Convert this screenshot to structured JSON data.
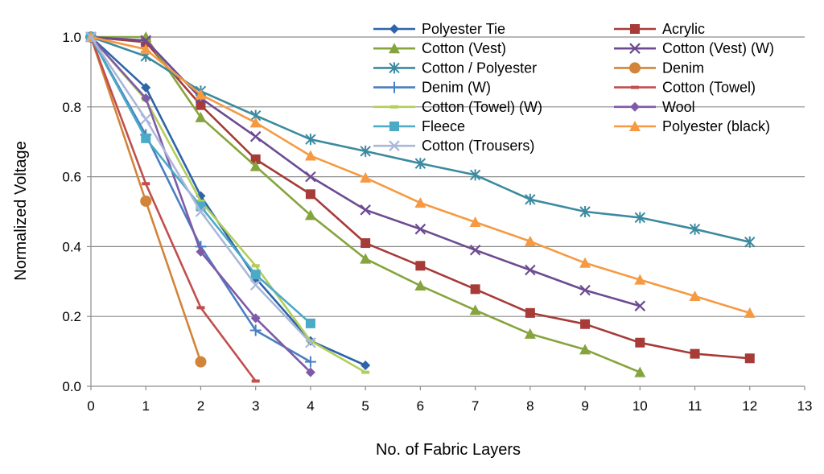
{
  "chart_data": {
    "type": "line",
    "title": "",
    "xlabel": "No. of Fabric Layers",
    "ylabel": "Normalized Voltage",
    "xlim": [
      0,
      13
    ],
    "ylim": [
      0,
      1.0
    ],
    "xticks": [
      0,
      1,
      2,
      3,
      4,
      5,
      6,
      7,
      8,
      9,
      10,
      11,
      12,
      13
    ],
    "yticks": [
      0.0,
      0.2,
      0.4,
      0.6,
      0.8,
      1.0
    ],
    "ytick_labels": [
      "0.0",
      "0.2",
      "0.4",
      "0.6",
      "0.8",
      "1.0"
    ],
    "grid": "horizontal",
    "legend_placement": "top-right",
    "series": [
      {
        "name": "Polyester Tie",
        "color": "#2E64A8",
        "marker": "diamond",
        "x": [
          0,
          1,
          2,
          3,
          4,
          5
        ],
        "y": [
          1.0,
          0.855,
          0.545,
          0.31,
          0.13,
          0.06
        ]
      },
      {
        "name": "Acrylic",
        "color": "#A63B38",
        "marker": "square",
        "x": [
          0,
          1,
          2,
          3,
          4,
          5,
          6,
          7,
          8,
          9,
          10,
          11,
          12
        ],
        "y": [
          1.0,
          0.985,
          0.805,
          0.65,
          0.55,
          0.41,
          0.345,
          0.278,
          0.21,
          0.178,
          0.125,
          0.093,
          0.08
        ]
      },
      {
        "name": "Cotton (Vest)",
        "color": "#86A43D",
        "marker": "triangle",
        "x": [
          0,
          1,
          2,
          3,
          4,
          5,
          6,
          7,
          8,
          9,
          10
        ],
        "y": [
          1.0,
          1.0,
          0.77,
          0.63,
          0.49,
          0.365,
          0.288,
          0.218,
          0.15,
          0.105,
          0.04
        ]
      },
      {
        "name": "Cotton (Vest) (W)",
        "color": "#6C4B91",
        "marker": "x",
        "x": [
          0,
          1,
          2,
          3,
          4,
          5,
          6,
          7,
          8,
          9,
          10
        ],
        "y": [
          1.0,
          0.99,
          0.825,
          0.715,
          0.6,
          0.505,
          0.45,
          0.39,
          0.333,
          0.275,
          0.23
        ]
      },
      {
        "name": "Cotton / Polyester",
        "color": "#3C8A9F",
        "marker": "asterisk",
        "x": [
          0,
          1,
          2,
          3,
          4,
          5,
          6,
          7,
          8,
          9,
          10,
          11,
          12
        ],
        "y": [
          1.0,
          0.945,
          0.845,
          0.775,
          0.707,
          0.673,
          0.638,
          0.605,
          0.535,
          0.5,
          0.483,
          0.45,
          0.413
        ]
      },
      {
        "name": "Denim",
        "color": "#D2843A",
        "marker": "circle",
        "x": [
          0,
          1,
          2
        ],
        "y": [
          1.0,
          0.53,
          0.07
        ]
      },
      {
        "name": "Denim (W)",
        "color": "#4A7FC1",
        "marker": "plus",
        "x": [
          0,
          1,
          2,
          3,
          4
        ],
        "y": [
          1.0,
          0.72,
          0.4,
          0.16,
          0.07
        ]
      },
      {
        "name": "Cotton (Towel)",
        "color": "#C04F4D",
        "marker": "dash",
        "x": [
          0,
          1,
          2,
          3
        ],
        "y": [
          1.0,
          0.58,
          0.225,
          0.015
        ]
      },
      {
        "name": "Cotton (Towel) (W)",
        "color": "#B3CE5A",
        "marker": "dash",
        "x": [
          0,
          1,
          2,
          3,
          4,
          5
        ],
        "y": [
          1.0,
          0.82,
          0.53,
          0.345,
          0.13,
          0.04
        ]
      },
      {
        "name": "Wool",
        "color": "#7E5AA8",
        "marker": "diamond",
        "x": [
          0,
          1,
          2,
          3,
          4
        ],
        "y": [
          1.0,
          0.825,
          0.385,
          0.195,
          0.04
        ]
      },
      {
        "name": "Fleece",
        "color": "#4BAAC6",
        "marker": "square",
        "x": [
          0,
          1,
          2,
          3,
          4
        ],
        "y": [
          1.0,
          0.71,
          0.515,
          0.32,
          0.18
        ]
      },
      {
        "name": "Polyester (black)",
        "color": "#F59A42",
        "marker": "triangle",
        "x": [
          0,
          1,
          2,
          3,
          4,
          5,
          6,
          7,
          8,
          9,
          10,
          11,
          12
        ],
        "y": [
          1.0,
          0.965,
          0.835,
          0.755,
          0.66,
          0.597,
          0.525,
          0.47,
          0.415,
          0.353,
          0.305,
          0.258,
          0.21
        ]
      },
      {
        "name": "Cotton (Trousers)",
        "color": "#A9B7D9",
        "marker": "x",
        "x": [
          0,
          1,
          2,
          3,
          4
        ],
        "y": [
          1.0,
          0.765,
          0.5,
          0.29,
          0.125
        ]
      }
    ]
  }
}
